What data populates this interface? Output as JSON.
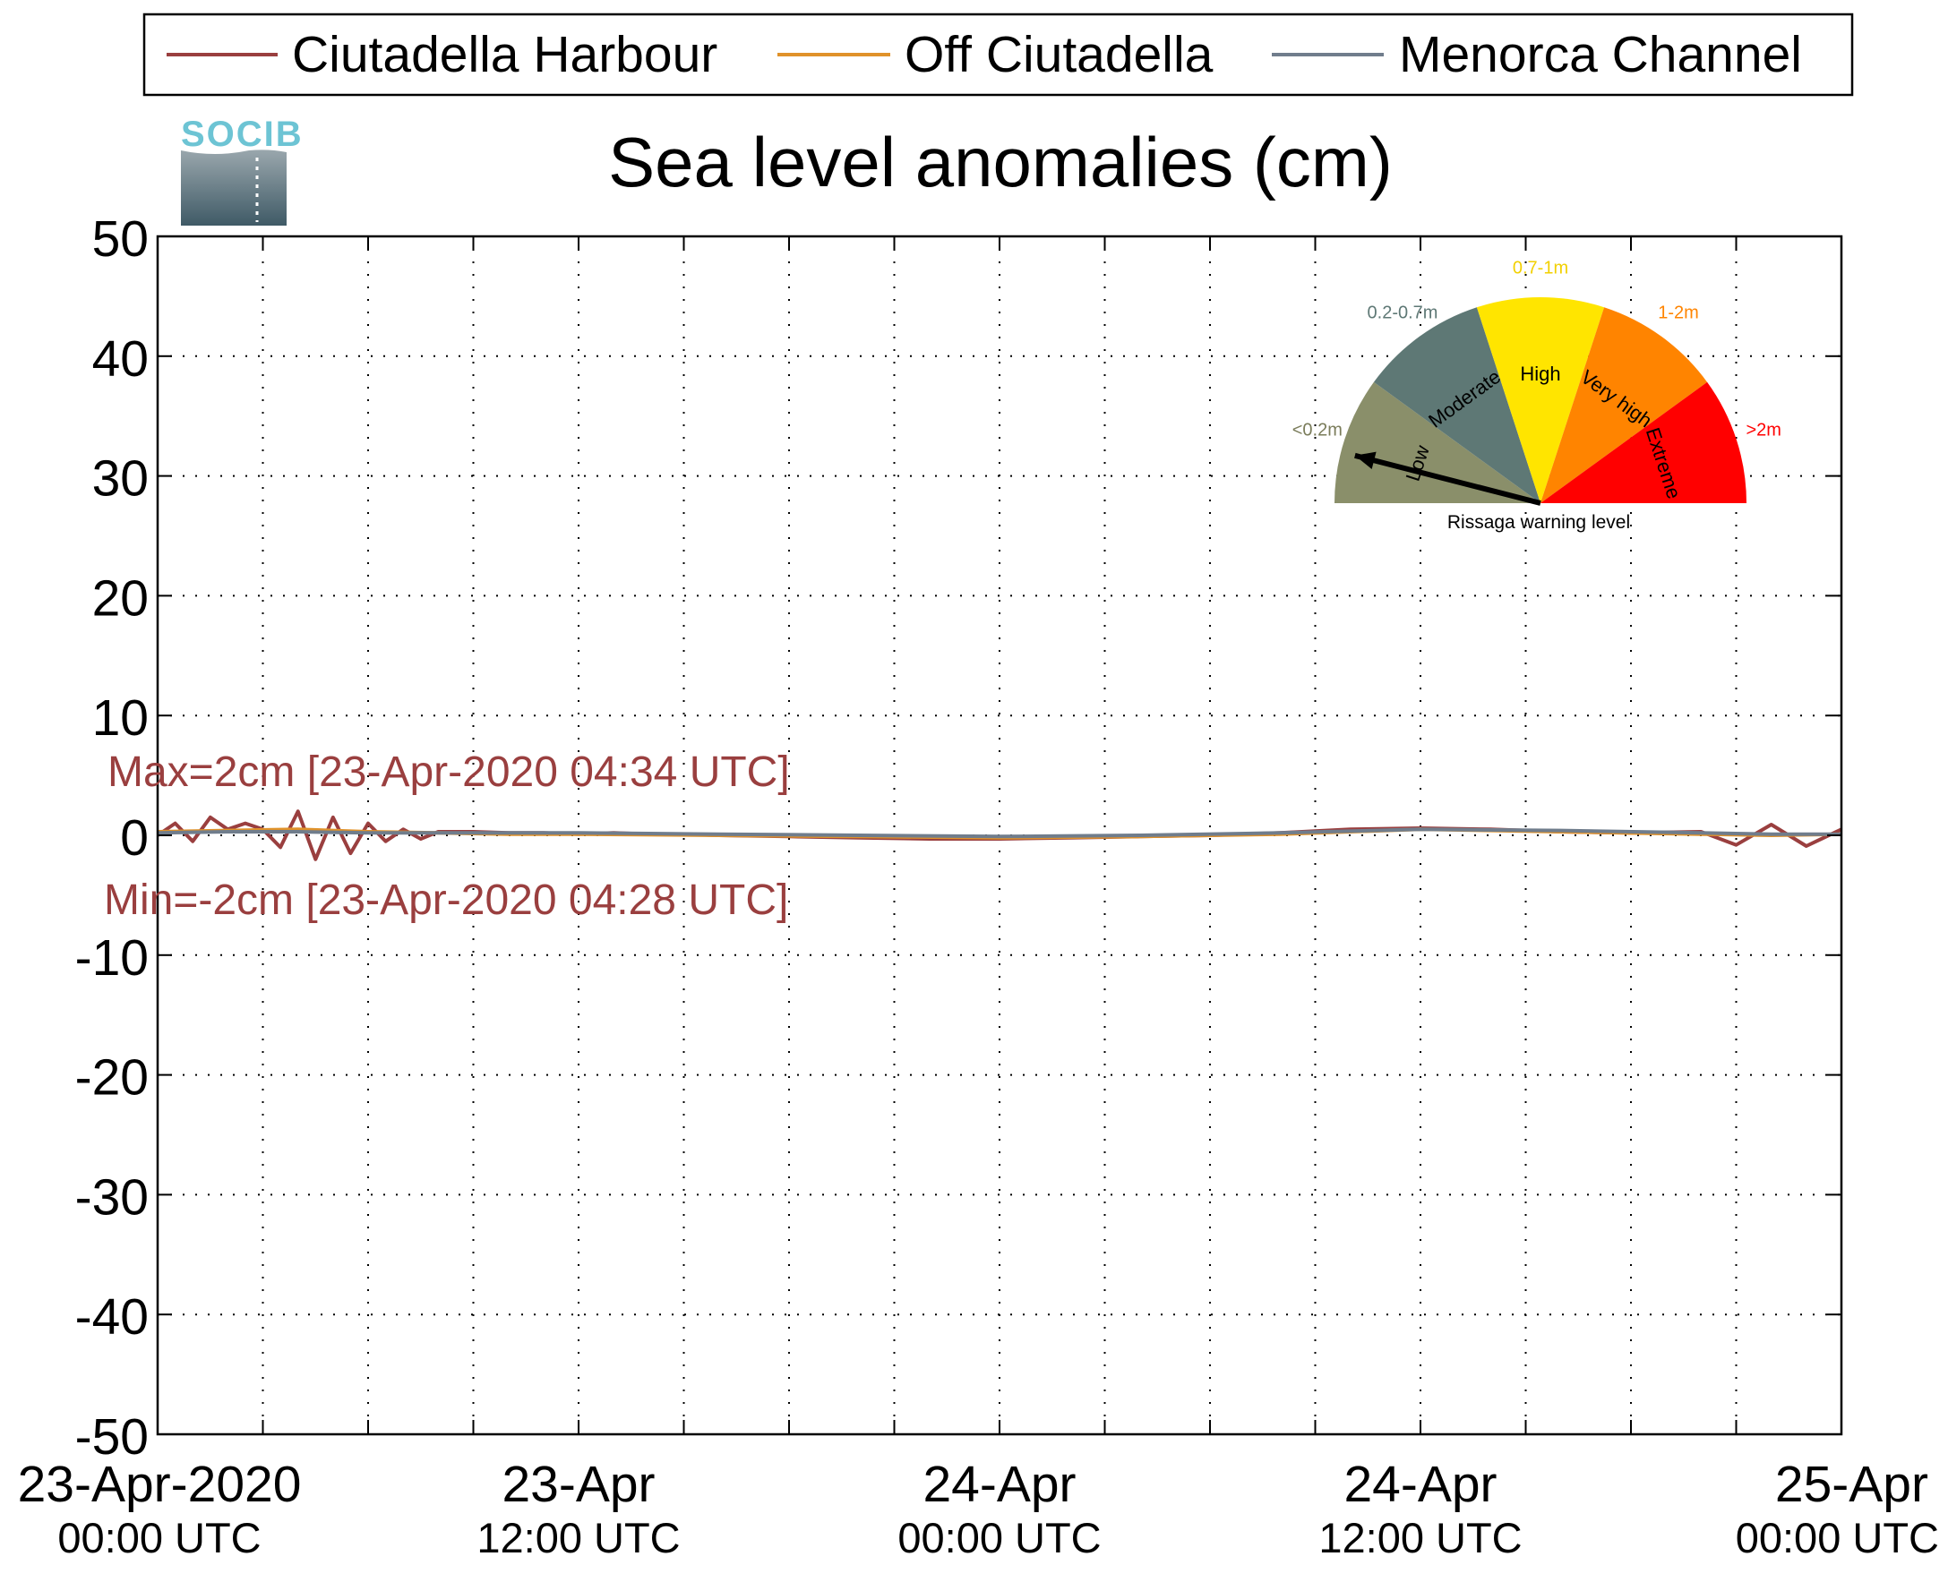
{
  "chart_data": {
    "type": "line",
    "title": "Sea level anomalies (cm)",
    "ylim": [
      -50,
      50
    ],
    "yticks": [
      50,
      40,
      30,
      20,
      10,
      0,
      -10,
      -20,
      -30,
      -40,
      -50
    ],
    "xlim": [
      "2020-04-23 00:00",
      "2020-04-25 00:00"
    ],
    "x_grid_hours": [
      3,
      6,
      9,
      12,
      15,
      18,
      21,
      24,
      27,
      30,
      33,
      36,
      39,
      42,
      45
    ],
    "grid": "dotted",
    "legend_position": "top",
    "xticks": [
      {
        "hour": 0,
        "line1": "23-Apr-2020",
        "line2": "00:00 UTC"
      },
      {
        "hour": 12,
        "line1": "23-Apr",
        "line2": "12:00 UTC"
      },
      {
        "hour": 24,
        "line1": "24-Apr",
        "line2": "00:00 UTC"
      },
      {
        "hour": 36,
        "line1": "24-Apr",
        "line2": "12:00 UTC"
      },
      {
        "hour": 48,
        "line1": "25-Apr",
        "line2": "00:00 UTC"
      }
    ],
    "series": [
      {
        "name": "Ciutadella Harbour",
        "color": "#9a3f3f",
        "x_hours": [
          0,
          0.5,
          1,
          1.5,
          2,
          2.5,
          3,
          3.5,
          4,
          4.5,
          5,
          5.5,
          6,
          6.5,
          7,
          7.5,
          8,
          9,
          10,
          11,
          12,
          13,
          14,
          15,
          16,
          18,
          20,
          22,
          24,
          26,
          28,
          30,
          32,
          34,
          36,
          38,
          40,
          42,
          44,
          45,
          46,
          47,
          48
        ],
        "values": [
          0,
          1,
          -0.5,
          1.5,
          0.5,
          1,
          0.5,
          -1,
          2,
          -2,
          1.5,
          -1.5,
          1,
          -0.5,
          0.5,
          -0.3,
          0.3,
          0.3,
          0.2,
          0.2,
          0.1,
          0.2,
          0.1,
          0.1,
          0,
          -0.1,
          -0.2,
          -0.3,
          -0.3,
          -0.2,
          -0.1,
          0,
          0.2,
          0.5,
          0.6,
          0.5,
          0.3,
          0.2,
          0.3,
          -0.8,
          0.9,
          -0.9,
          0.5
        ]
      },
      {
        "name": "Off Ciutadella",
        "color": "#e0922a",
        "x_hours": [
          0,
          2,
          4,
          6,
          8,
          10,
          12,
          16,
          20,
          24,
          28,
          32,
          36,
          40,
          44,
          46,
          48
        ],
        "values": [
          0.3,
          0.4,
          0.5,
          0.3,
          0.2,
          0.1,
          0.1,
          0,
          -0.1,
          -0.2,
          -0.1,
          0.1,
          0.5,
          0.3,
          0.1,
          0,
          0.1
        ]
      },
      {
        "name": "Menorca Channel",
        "color": "#707d8c",
        "x_hours": [
          0,
          2,
          4,
          6,
          8,
          10,
          12,
          16,
          20,
          24,
          28,
          32,
          36,
          40,
          44,
          46,
          48
        ],
        "values": [
          0.2,
          0.3,
          0.3,
          0.2,
          0.2,
          0.2,
          0.2,
          0.1,
          0,
          -0.1,
          0,
          0.2,
          0.5,
          0.4,
          0.2,
          0.1,
          0.1
        ]
      }
    ],
    "annotations": {
      "max": "Max=2cm [23-Apr-2020 04:34 UTC]",
      "min": "Min=-2cm [23-Apr-2020 04:28 UTC]",
      "color": "#9a3f3f"
    }
  },
  "logo": {
    "text": "SOCIB",
    "top_color": "#6dc4d4",
    "bottom_color": "#3f5a66"
  },
  "gauge": {
    "caption": "Rissaga warning level",
    "needle_level": "Low",
    "segments": [
      {
        "name": "Low",
        "range": "<0.2m",
        "color": "#8a8f6a",
        "range_color": "#7a7c5a"
      },
      {
        "name": "Moderate",
        "range": "0.2-0.7m",
        "color": "#5e7875",
        "range_color": "#5e7875"
      },
      {
        "name": "High",
        "range": "0.7-1m",
        "color": "#ffe500",
        "range_color": "#f2d000"
      },
      {
        "name": "Very high",
        "range": "1-2m",
        "color": "#ff8400",
        "range_color": "#ff8400"
      },
      {
        "name": "Extreme",
        "range": ">2m",
        "color": "#ff0000",
        "range_color": "#ff0000"
      }
    ]
  }
}
